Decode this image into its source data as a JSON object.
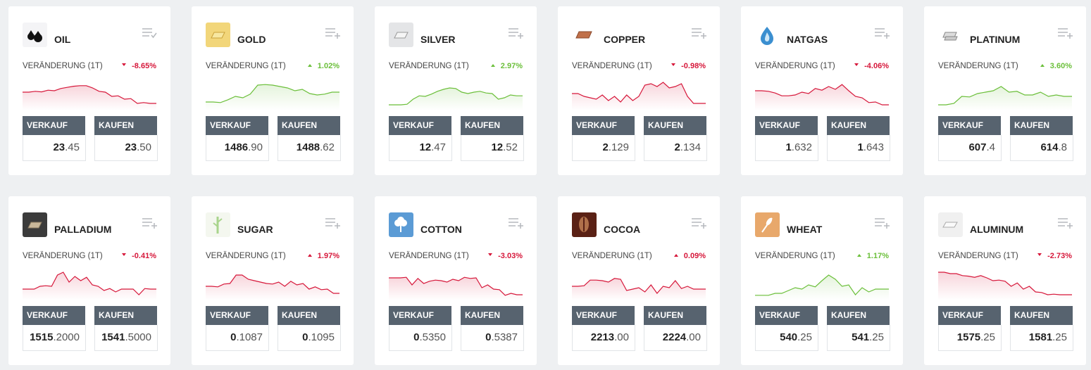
{
  "labels": {
    "change": "VERÄNDERUNG (1T)",
    "sell": "VERKAUF",
    "buy": "KAUFEN"
  },
  "ylim": [
    0,
    100
  ],
  "cards": [
    {
      "name": "OIL",
      "change": "-8.65%",
      "color": "#d6173a",
      "sell": "23.45",
      "buy": "23.50",
      "spark": [
        55,
        55,
        58,
        56,
        62,
        60,
        68,
        72,
        76,
        78,
        78,
        70,
        58,
        55,
        40,
        42,
        30,
        32,
        15,
        18,
        15,
        15
      ]
    },
    {
      "name": "GOLD",
      "change": "1.02%",
      "color": "#6bbf3a",
      "sell": "1486.90",
      "buy": "1488.62",
      "spark": [
        20,
        20,
        18,
        28,
        40,
        35,
        48,
        80,
        82,
        80,
        75,
        70,
        60,
        65,
        50,
        45,
        48,
        55,
        55
      ]
    },
    {
      "name": "SILVER",
      "change": "2.97%",
      "color": "#6bbf3a",
      "sell": "12.47",
      "buy": "12.52",
      "spark": [
        10,
        10,
        10,
        12,
        30,
        42,
        40,
        48,
        58,
        65,
        70,
        68,
        55,
        50,
        55,
        58,
        52,
        50,
        30,
        35,
        45,
        42,
        42
      ]
    },
    {
      "name": "COPPER",
      "change": "-0.98%",
      "color": "#d6173a",
      "sell": "2.129",
      "buy": "2.134",
      "spark": [
        50,
        50,
        40,
        35,
        30,
        45,
        25,
        40,
        20,
        45,
        25,
        40,
        80,
        85,
        75,
        90,
        70,
        75,
        85,
        40,
        15,
        15,
        15
      ]
    },
    {
      "name": "NATGAS",
      "change": "-4.06%",
      "color": "#d6173a",
      "sell": "1.632",
      "buy": "1.643",
      "spark": [
        60,
        60,
        58,
        52,
        42,
        42,
        45,
        55,
        50,
        68,
        62,
        75,
        65,
        82,
        60,
        40,
        35,
        18,
        20,
        10,
        10
      ]
    },
    {
      "name": "PLATINUM",
      "change": "3.60%",
      "color": "#6bbf3a",
      "sell": "607.4",
      "buy": "614.8",
      "spark": [
        10,
        10,
        15,
        40,
        38,
        50,
        55,
        60,
        75,
        55,
        58,
        45,
        45,
        55,
        40,
        45,
        40,
        40
      ]
    },
    {
      "name": "PALLADIUM",
      "change": "-0.41%",
      "color": "#d6173a",
      "sell": "1515.2000",
      "buy": "1541.5000",
      "spark": [
        30,
        30,
        30,
        40,
        42,
        40,
        80,
        90,
        55,
        75,
        60,
        72,
        45,
        40,
        25,
        32,
        20,
        30,
        30,
        30,
        10,
        32,
        30,
        30
      ]
    },
    {
      "name": "SUGAR",
      "change": "1.97%",
      "color": "#d6173a",
      "sell": "0.1087",
      "buy": "0.1095",
      "spark": [
        40,
        40,
        38,
        48,
        50,
        80,
        80,
        65,
        60,
        55,
        50,
        48,
        55,
        40,
        58,
        45,
        50,
        30,
        38,
        28,
        30,
        15,
        15
      ]
    },
    {
      "name": "COTTON",
      "change": "-3.03%",
      "color": "#d6173a",
      "sell": "0.5350",
      "buy": "0.5387",
      "spark": [
        70,
        70,
        70,
        72,
        45,
        68,
        50,
        58,
        62,
        60,
        55,
        65,
        60,
        72,
        68,
        70,
        35,
        45,
        30,
        28,
        8,
        15,
        10,
        10
      ]
    },
    {
      "name": "COCOA",
      "change": "0.09%",
      "color": "#d6173a",
      "sell": "2213.00",
      "buy": "2224.00",
      "spark": [
        40,
        40,
        42,
        62,
        62,
        60,
        55,
        68,
        65,
        25,
        30,
        35,
        20,
        45,
        15,
        40,
        35,
        60,
        32,
        40,
        30,
        30,
        30
      ]
    },
    {
      "name": "WHEAT",
      "change": "1.17%",
      "color": "#6bbf3a",
      "sell": "540.25",
      "buy": "541.25",
      "spark": [
        8,
        8,
        8,
        15,
        15,
        25,
        35,
        30,
        45,
        38,
        60,
        80,
        65,
        40,
        45,
        10,
        35,
        20,
        30,
        30,
        30
      ]
    },
    {
      "name": "ALUMINUM",
      "change": "-2.73%",
      "color": "#d6173a",
      "sell": "1575.25",
      "buy": "1581.25",
      "spark": [
        90,
        90,
        85,
        85,
        78,
        76,
        72,
        78,
        70,
        60,
        62,
        58,
        40,
        52,
        30,
        40,
        20,
        18,
        10,
        12,
        10,
        10,
        10
      ]
    }
  ]
}
